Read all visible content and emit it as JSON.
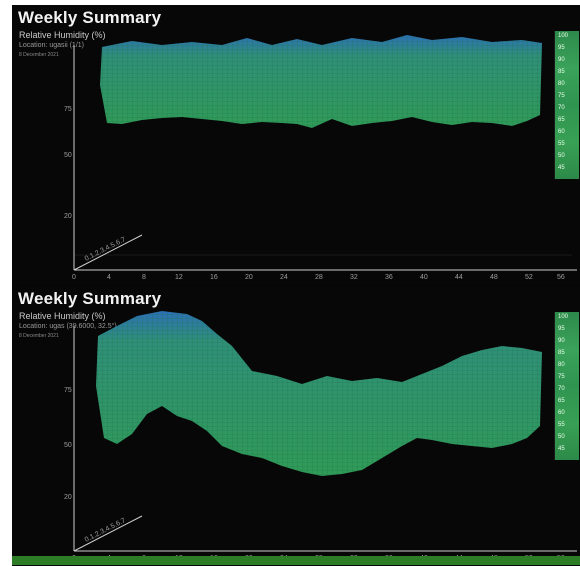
{
  "summaries": [
    {
      "title": "Weekly Summary",
      "subtitle": "Relative Humidity (%)",
      "location": "Location: ugasii (1/1)",
      "date": "8 December 2021",
      "y_ticks": [
        "20",
        "50",
        "75"
      ],
      "x_ticks": [
        "0",
        "4",
        "8",
        "12",
        "16",
        "20",
        "24",
        "28",
        "32",
        "36",
        "40",
        "44",
        "48",
        "52",
        "56"
      ],
      "colorbar_ticks": [
        "100",
        "95",
        "90",
        "85",
        "80",
        "75",
        "70",
        "65",
        "60",
        "55",
        "50",
        "45",
        "40"
      ],
      "depth_axis_label": "0.1.2.3.4.5.6.7"
    },
    {
      "title": "Weekly Summary",
      "subtitle": "Relative Humidity (%)",
      "location": "Location: ugas (39.6000, 32.5°)",
      "date": "8 December 2021",
      "y_ticks": [
        "20",
        "50",
        "75"
      ],
      "x_ticks": [
        "0",
        "4",
        "8",
        "12",
        "16",
        "20",
        "24",
        "28",
        "32",
        "36",
        "40",
        "44",
        "48",
        "52",
        "56"
      ],
      "colorbar_ticks": [
        "100",
        "95",
        "90",
        "85",
        "80",
        "75",
        "70",
        "65",
        "60",
        "55",
        "50",
        "45",
        "40"
      ],
      "depth_axis_label": "0.1.2.3.4.5.6.7"
    }
  ],
  "colors": {
    "surface_green": "#2f9b57",
    "surface_blue": "#2b74b8",
    "background": "#060606",
    "bottom_strip": "#2c7d26"
  }
}
